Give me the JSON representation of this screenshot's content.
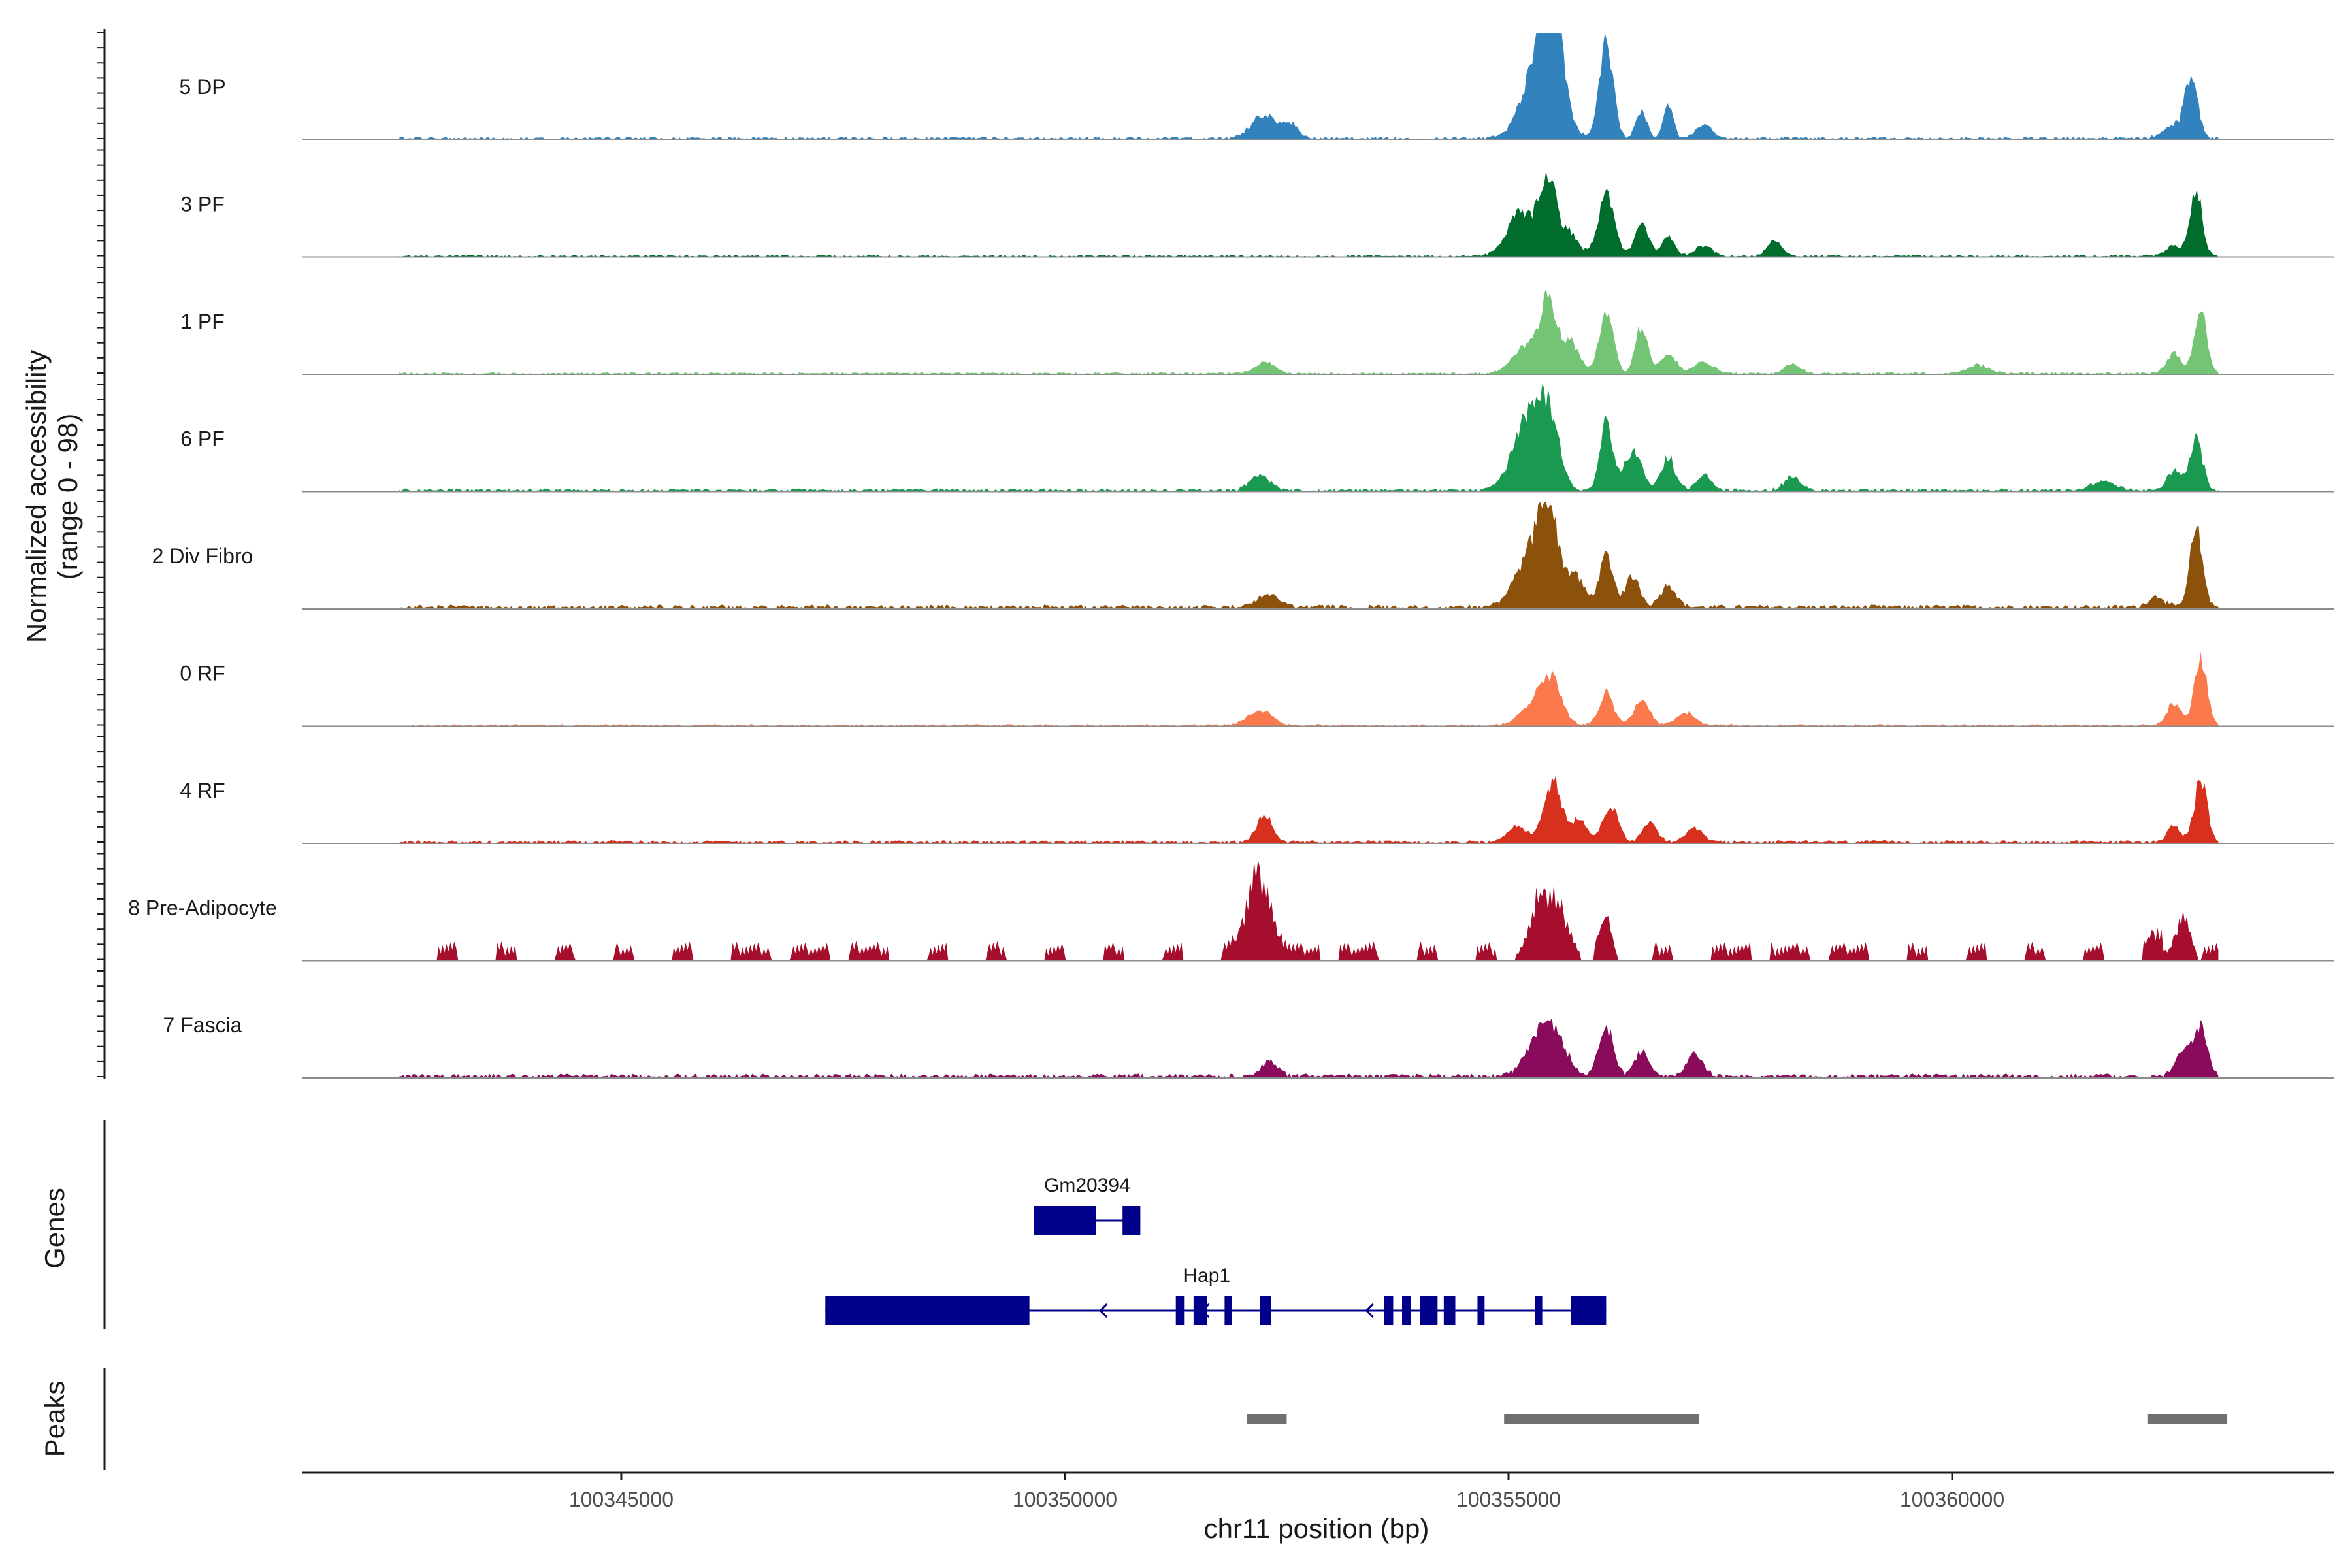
{
  "chart_data": {
    "type": "area",
    "x_range": [
      100341400,
      100364300
    ],
    "y_range": [
      0,
      98
    ],
    "ylabel": "Normalized accessibility",
    "ylabel_range": "(range 0 - 98)",
    "xlabel": "chr11 position (bp)",
    "xticks": [
      100345000,
      100350000,
      100355000,
      100360000
    ],
    "track_start": 100342500,
    "track_end": 100363000,
    "tracks": [
      {
        "name": "5 DP",
        "color": "#3182bd",
        "height_scale": 1.0,
        "sparse": false,
        "peaks": [
          [
            100352250,
            22,
            140
          ],
          [
            100352550,
            12,
            90
          ],
          [
            100355300,
            52,
            170
          ],
          [
            100355450,
            98,
            90
          ],
          [
            100355500,
            70,
            140
          ],
          [
            100356100,
            86,
            80
          ],
          [
            100356500,
            25,
            60
          ],
          [
            100356800,
            30,
            55
          ],
          [
            100357200,
            12,
            90
          ],
          [
            100362500,
            12,
            130
          ],
          [
            100362700,
            58,
            70
          ]
        ],
        "base": 3
      },
      {
        "name": "3 PF",
        "color": "#006d2c",
        "height_scale": 0.98,
        "sparse": false,
        "peaks": [
          [
            100355150,
            40,
            160
          ],
          [
            100355450,
            72,
            90
          ],
          [
            100355700,
            22,
            90
          ],
          [
            100356100,
            55,
            90
          ],
          [
            100356500,
            28,
            80
          ],
          [
            100356800,
            18,
            70
          ],
          [
            100357200,
            10,
            90
          ],
          [
            100358000,
            14,
            80
          ],
          [
            100362500,
            10,
            90
          ],
          [
            100362750,
            58,
            70
          ]
        ],
        "base": 2
      },
      {
        "name": "1 PF",
        "color": "#74c476",
        "height_scale": 0.98,
        "sparse": false,
        "peaks": [
          [
            100352250,
            10,
            110
          ],
          [
            100355200,
            25,
            150
          ],
          [
            100355450,
            66,
            90
          ],
          [
            100355700,
            28,
            100
          ],
          [
            100356100,
            54,
            80
          ],
          [
            100356500,
            45,
            70
          ],
          [
            100356800,
            18,
            90
          ],
          [
            100357200,
            10,
            110
          ],
          [
            100358200,
            8,
            90
          ],
          [
            100360300,
            8,
            120
          ],
          [
            100362500,
            18,
            80
          ],
          [
            100362800,
            60,
            70
          ]
        ],
        "base": 2
      },
      {
        "name": "6 PF",
        "color": "#1a9a50",
        "height_scale": 0.98,
        "sparse": false,
        "peaks": [
          [
            100352200,
            14,
            110
          ],
          [
            100355200,
            60,
            160
          ],
          [
            100355450,
            64,
            120
          ],
          [
            100356100,
            62,
            70
          ],
          [
            100356400,
            36,
            100
          ],
          [
            100356800,
            30,
            80
          ],
          [
            100357200,
            14,
            80
          ],
          [
            100358200,
            12,
            90
          ],
          [
            100361700,
            8,
            130
          ],
          [
            100362500,
            18,
            80
          ],
          [
            100362750,
            50,
            70
          ]
        ],
        "base": 3
      },
      {
        "name": "2 Div Fibro",
        "color": "#8c510a",
        "height_scale": 0.98,
        "sparse": false,
        "peaks": [
          [
            100352300,
            12,
            120
          ],
          [
            100355250,
            45,
            170
          ],
          [
            100355450,
            80,
            110
          ],
          [
            100355750,
            28,
            100
          ],
          [
            100356100,
            46,
            80
          ],
          [
            100356400,
            28,
            80
          ],
          [
            100356800,
            20,
            90
          ],
          [
            100362300,
            10,
            90
          ],
          [
            100362750,
            72,
            70
          ]
        ],
        "base": 4
      },
      {
        "name": "0 RF",
        "color": "#fa7a4d",
        "height_scale": 0.98,
        "sparse": false,
        "peaks": [
          [
            100352200,
            14,
            130
          ],
          [
            100355300,
            22,
            150
          ],
          [
            100355500,
            34,
            110
          ],
          [
            100356100,
            30,
            80
          ],
          [
            100356500,
            22,
            90
          ],
          [
            100357000,
            12,
            100
          ],
          [
            100362500,
            20,
            80
          ],
          [
            100362800,
            60,
            70
          ]
        ],
        "base": 2
      },
      {
        "name": "4 RF",
        "color": "#d7301f",
        "height_scale": 0.98,
        "sparse": false,
        "peaks": [
          [
            100352250,
            24,
            90
          ],
          [
            100355100,
            14,
            110
          ],
          [
            100355500,
            56,
            100
          ],
          [
            100355800,
            20,
            80
          ],
          [
            100356150,
            32,
            90
          ],
          [
            100356600,
            18,
            80
          ],
          [
            100357100,
            12,
            90
          ],
          [
            100362500,
            14,
            80
          ],
          [
            100362800,
            58,
            70
          ]
        ],
        "base": 3
      },
      {
        "name": "8 Pre-Adipocyte",
        "color": "#a50f2d",
        "height_scale": 0.98,
        "sparse": true,
        "peaks": [
          [
            100352250,
            58,
            110
          ],
          [
            100352100,
            36,
            110
          ],
          [
            100355350,
            48,
            130
          ],
          [
            100355600,
            40,
            110
          ],
          [
            100356100,
            26,
            80
          ],
          [
            100362600,
            45,
            80
          ],
          [
            100362300,
            16,
            80
          ]
        ],
        "base": 6
      },
      {
        "name": "7 Fascia",
        "color": "#8a0a5b",
        "height_scale": 0.98,
        "sparse": false,
        "peaks": [
          [
            100352300,
            14,
            90
          ],
          [
            100355350,
            36,
            150
          ],
          [
            100355550,
            28,
            120
          ],
          [
            100356100,
            46,
            80
          ],
          [
            100356500,
            24,
            80
          ],
          [
            100357100,
            20,
            90
          ],
          [
            100362600,
            22,
            90
          ],
          [
            100362800,
            44,
            80
          ]
        ],
        "base": 4
      }
    ],
    "genes_title": "Genes",
    "genes": [
      {
        "name": "Gm20394",
        "color": "#00008b",
        "row": 0,
        "start": 100349650,
        "end": 100350850,
        "exons": [
          [
            100349650,
            100350350
          ],
          [
            100350650,
            100350850
          ]
        ],
        "strand": "+"
      },
      {
        "name": "Hap1",
        "color": "#00008b",
        "row": 1,
        "start": 100347300,
        "end": 100356100,
        "exons": [
          [
            100347300,
            100349600
          ],
          [
            100351250,
            100351350
          ],
          [
            100351450,
            100351600
          ],
          [
            100351800,
            100351880
          ],
          [
            100352200,
            100352320
          ],
          [
            100353600,
            100353700
          ],
          [
            100353800,
            100353900
          ],
          [
            100354000,
            100354200
          ],
          [
            100354270,
            100354400
          ],
          [
            100354650,
            100354730
          ],
          [
            100355300,
            100355380
          ],
          [
            100355700,
            100356100
          ]
        ],
        "strand": "-",
        "label_pos": 100351600
      },
      {
        "_note": "label_pos marks where the Hap1 name is centred, in bp"
      }
    ],
    "peaks_title": "Peaks",
    "peak_regions": [
      [
        100352050,
        100352500
      ],
      [
        100354950,
        100357150
      ],
      [
        100362200,
        100363100
      ]
    ]
  }
}
